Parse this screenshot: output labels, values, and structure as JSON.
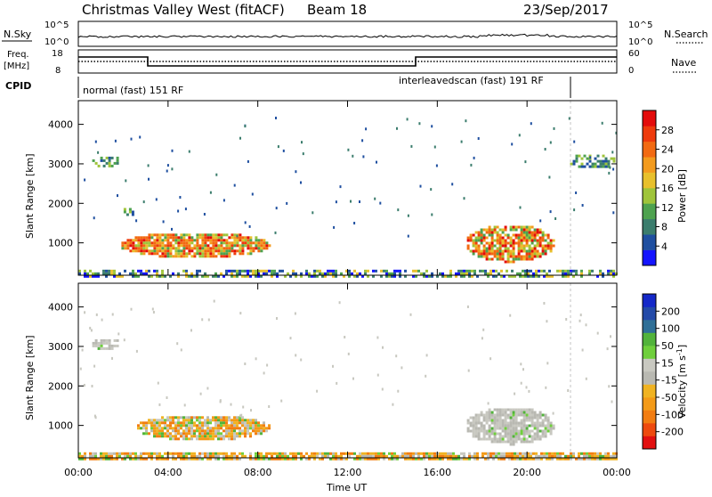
{
  "header": {
    "title": "Christmas Valley West (fitACF)",
    "beam": "Beam 18",
    "date": "23/Sep/2017"
  },
  "strip_panels": {
    "nsky_label": "N.Sky",
    "nsky_ticks": [
      "10^5",
      "10^0"
    ],
    "nsearch_label": "N.Search",
    "nsearch_ticks": [
      "10^5",
      "10^0"
    ],
    "freq_label": "Freq.",
    "freq_unit": "[MHz]",
    "freq_ticks": [
      "18",
      "8"
    ],
    "nave_label": "Nave",
    "nave_ticks": [
      "60",
      "0"
    ],
    "cpid_label": "CPID",
    "cpid_modes": [
      "normal (fast) 151 RF",
      "interleavedscan (fast) 191 RF"
    ]
  },
  "chart_data": [
    {
      "type": "heatmap",
      "name": "power",
      "ylabel": "Slant Range [km]",
      "xlabel": "",
      "ylim": [
        180,
        4600
      ],
      "xlim_hours": [
        0,
        24
      ],
      "yticks": [
        "1000",
        "2000",
        "3000",
        "4000"
      ],
      "colorbar": {
        "label": "Power [dB]",
        "ticks": [
          "4",
          "8",
          "12",
          "16",
          "20",
          "24",
          "28"
        ],
        "colors": [
          "#1414ff",
          "#1f4fa0",
          "#3b7d6d",
          "#4ea24f",
          "#9fc43a",
          "#e8c02c",
          "#f39b1e",
          "#f26a12",
          "#ee3a0c",
          "#e30b0b"
        ]
      },
      "features": [
        {
          "hours": [
            0.5,
            1.8
          ],
          "range_km": [
            2950,
            3250
          ],
          "level": "mid"
        },
        {
          "hours": [
            1.8,
            8.5
          ],
          "range_km": [
            650,
            1300
          ],
          "level": "high"
        },
        {
          "hours": [
            1.9,
            2.6
          ],
          "range_km": [
            1700,
            1950
          ],
          "level": "mid"
        },
        {
          "hours": [
            0,
            24
          ],
          "range_km": [
            180,
            320
          ],
          "level": "low"
        },
        {
          "hours": [
            17.2,
            21.2
          ],
          "range_km": [
            550,
            1500
          ],
          "level": "high"
        },
        {
          "hours": [
            21.8,
            23.9
          ],
          "range_km": [
            2900,
            3300
          ],
          "level": "mid"
        }
      ]
    },
    {
      "type": "heatmap",
      "name": "velocity",
      "ylabel": "Slant Range [km]",
      "xlabel": "Time UT",
      "ylim": [
        180,
        4600
      ],
      "xlim_hours": [
        0,
        24
      ],
      "yticks": [
        "1000",
        "2000",
        "3000",
        "4000"
      ],
      "xticks": [
        "00:00",
        "04:00",
        "08:00",
        "12:00",
        "16:00",
        "20:00",
        "00:00"
      ],
      "colorbar": {
        "label": "Velocity [m s^-1]",
        "ticks": [
          "200",
          "100",
          "50",
          "15",
          "-15",
          "-50",
          "-100",
          "-200"
        ],
        "colors": [
          "#1428c8",
          "#234aa8",
          "#2f6f97",
          "#52b33b",
          "#6fcf3c",
          "#c8c8c0",
          "#b9b9b2",
          "#f0b322",
          "#f39a18",
          "#f27d11",
          "#ee4a0e",
          "#e21010"
        ]
      },
      "features": [
        {
          "hours": [
            0.5,
            1.8
          ],
          "range_km": [
            2950,
            3250
          ],
          "level": "gray"
        },
        {
          "hours": [
            2.5,
            8.5
          ],
          "range_km": [
            650,
            1300
          ],
          "level": "orange"
        },
        {
          "hours": [
            0,
            24
          ],
          "range_km": [
            180,
            320
          ],
          "level": "orange"
        },
        {
          "hours": [
            17.2,
            21.2
          ],
          "range_km": [
            550,
            1500
          ],
          "level": "gray"
        }
      ]
    }
  ]
}
